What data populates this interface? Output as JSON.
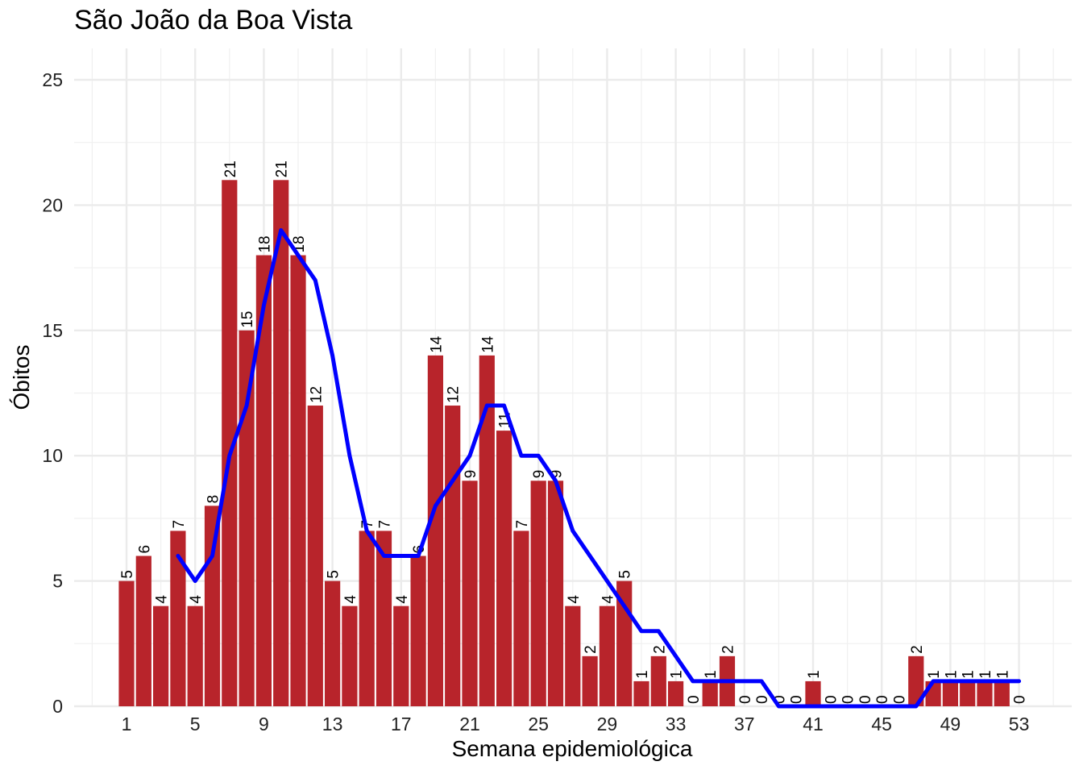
{
  "chart_data": {
    "type": "bar",
    "title": "São João da Boa Vista",
    "xlabel": "Semana epidemiológica",
    "ylabel": "Óbitos",
    "x": [
      1,
      2,
      3,
      4,
      5,
      6,
      7,
      8,
      9,
      10,
      11,
      12,
      13,
      14,
      15,
      16,
      17,
      18,
      19,
      20,
      21,
      22,
      23,
      24,
      25,
      26,
      27,
      28,
      29,
      30,
      31,
      32,
      33,
      34,
      35,
      36,
      37,
      38,
      39,
      40,
      41,
      42,
      43,
      44,
      45,
      46,
      47,
      48,
      49,
      50,
      51,
      52,
      53
    ],
    "x_ticks": [
      1,
      5,
      9,
      13,
      17,
      21,
      25,
      29,
      33,
      37,
      41,
      45,
      49,
      53
    ],
    "xlim": [
      -1,
      55
    ],
    "ylim": [
      0,
      25
    ],
    "y_ticks": [
      0,
      5,
      10,
      15,
      20,
      25
    ],
    "grid": true,
    "series": [
      {
        "type": "bar",
        "color": "#B8242B",
        "values": [
          5,
          6,
          4,
          7,
          4,
          8,
          21,
          15,
          18,
          21,
          18,
          12,
          5,
          4,
          7,
          7,
          4,
          6,
          14,
          12,
          9,
          14,
          11,
          7,
          9,
          9,
          4,
          2,
          4,
          5,
          1,
          2,
          1,
          0,
          1,
          2,
          0,
          0,
          0,
          0,
          1,
          0,
          0,
          0,
          0,
          0,
          2,
          1,
          1,
          1,
          1,
          1,
          0
        ]
      },
      {
        "type": "line",
        "color": "#0000FF",
        "x": [
          4,
          5,
          6,
          7,
          8,
          9,
          10,
          11,
          12,
          13,
          14,
          15,
          16,
          17,
          18,
          19,
          20,
          21,
          22,
          23,
          24,
          25,
          26,
          27,
          28,
          29,
          30,
          31,
          32,
          33,
          34,
          35,
          36,
          37,
          38,
          39,
          40,
          41,
          42,
          43,
          44,
          45,
          46,
          47,
          48,
          49,
          50,
          51,
          52,
          53
        ],
        "values": [
          6,
          5,
          6,
          10,
          12,
          16,
          19,
          18,
          17,
          14,
          10,
          7,
          6,
          6,
          6,
          8,
          9,
          10,
          12,
          12,
          10,
          10,
          9,
          7,
          6,
          5,
          4,
          3,
          3,
          2,
          1,
          1,
          1,
          1,
          1,
          0,
          0,
          0,
          0,
          0,
          0,
          0,
          0,
          0,
          1,
          1,
          1,
          1,
          1,
          1
        ]
      }
    ]
  }
}
